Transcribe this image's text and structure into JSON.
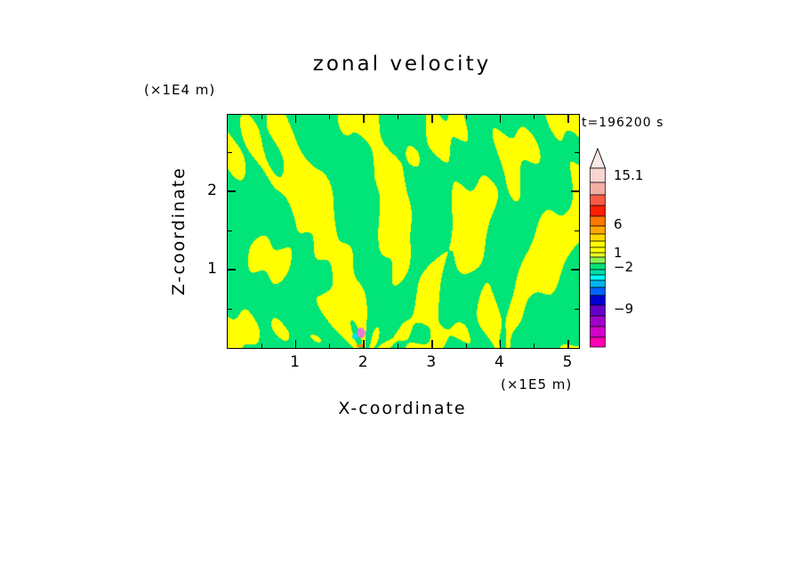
{
  "title": "zonal velocity",
  "time_label": "t=196200 s",
  "y_units_label": "(×1E4 m)",
  "x_units_label": "(×1E5 m)",
  "xlabel": "X-coordinate",
  "ylabel": "Z-coordinate",
  "chart_data": {
    "type": "heatmap",
    "title": "zonal velocity",
    "xlabel": "X-coordinate",
    "ylabel": "Z-coordinate",
    "x_units": "(×1E5 m)",
    "y_units": "(×1E4 m)",
    "time_annotation": "t=196200 s",
    "x_ticks": [
      1,
      2,
      3,
      4,
      5
    ],
    "y_ticks": [
      1,
      2
    ],
    "x_range": [
      0,
      5.16
    ],
    "y_range": [
      0,
      2.98
    ],
    "grid": false,
    "colorbar_position": "right",
    "field": {
      "description": "Filled contour field of zonal velocity: chaotic interleaved bright-yellow (positive) and spring-green (negative) wave filaments fanning radially from internal-wave sources near x=2 and x=4.1 at the lower boundary, with fine vertical striping aloft and small pink/cyan extreme-value spots at the x=2 source near the bottom.",
      "positive_color": "#FFFF00",
      "negative_color": "#00E478",
      "spot_pink": "#E878D8",
      "spot_cyan": "#00E8F0",
      "spot_orange": "#FF8C00",
      "sources_x": [
        2.0,
        4.1
      ]
    },
    "colorbar": {
      "labels": [
        {
          "text": "15.1",
          "value": 15.1
        },
        {
          "text": "6",
          "value": 6
        },
        {
          "text": "1",
          "value": 1
        },
        {
          "text": "−2",
          "value": -2
        },
        {
          "text": "−9",
          "value": -9
        }
      ],
      "tip_color": "#FAEAE6",
      "segments_top_to_bottom": [
        "#F7D6D2",
        "#F4AEA6",
        "#F95A46",
        "#FF1E00",
        "#FF7800",
        "#FFA800",
        "#FFD800",
        "#FFFF00",
        "#FFFF00",
        "#E8FF28",
        "#8CF050",
        "#00E478",
        "#00E0A8",
        "#00FFFF",
        "#00B4F0",
        "#0064FF",
        "#0000D2",
        "#6400C8",
        "#A000C8",
        "#D200C8",
        "#FF00B4"
      ]
    }
  }
}
